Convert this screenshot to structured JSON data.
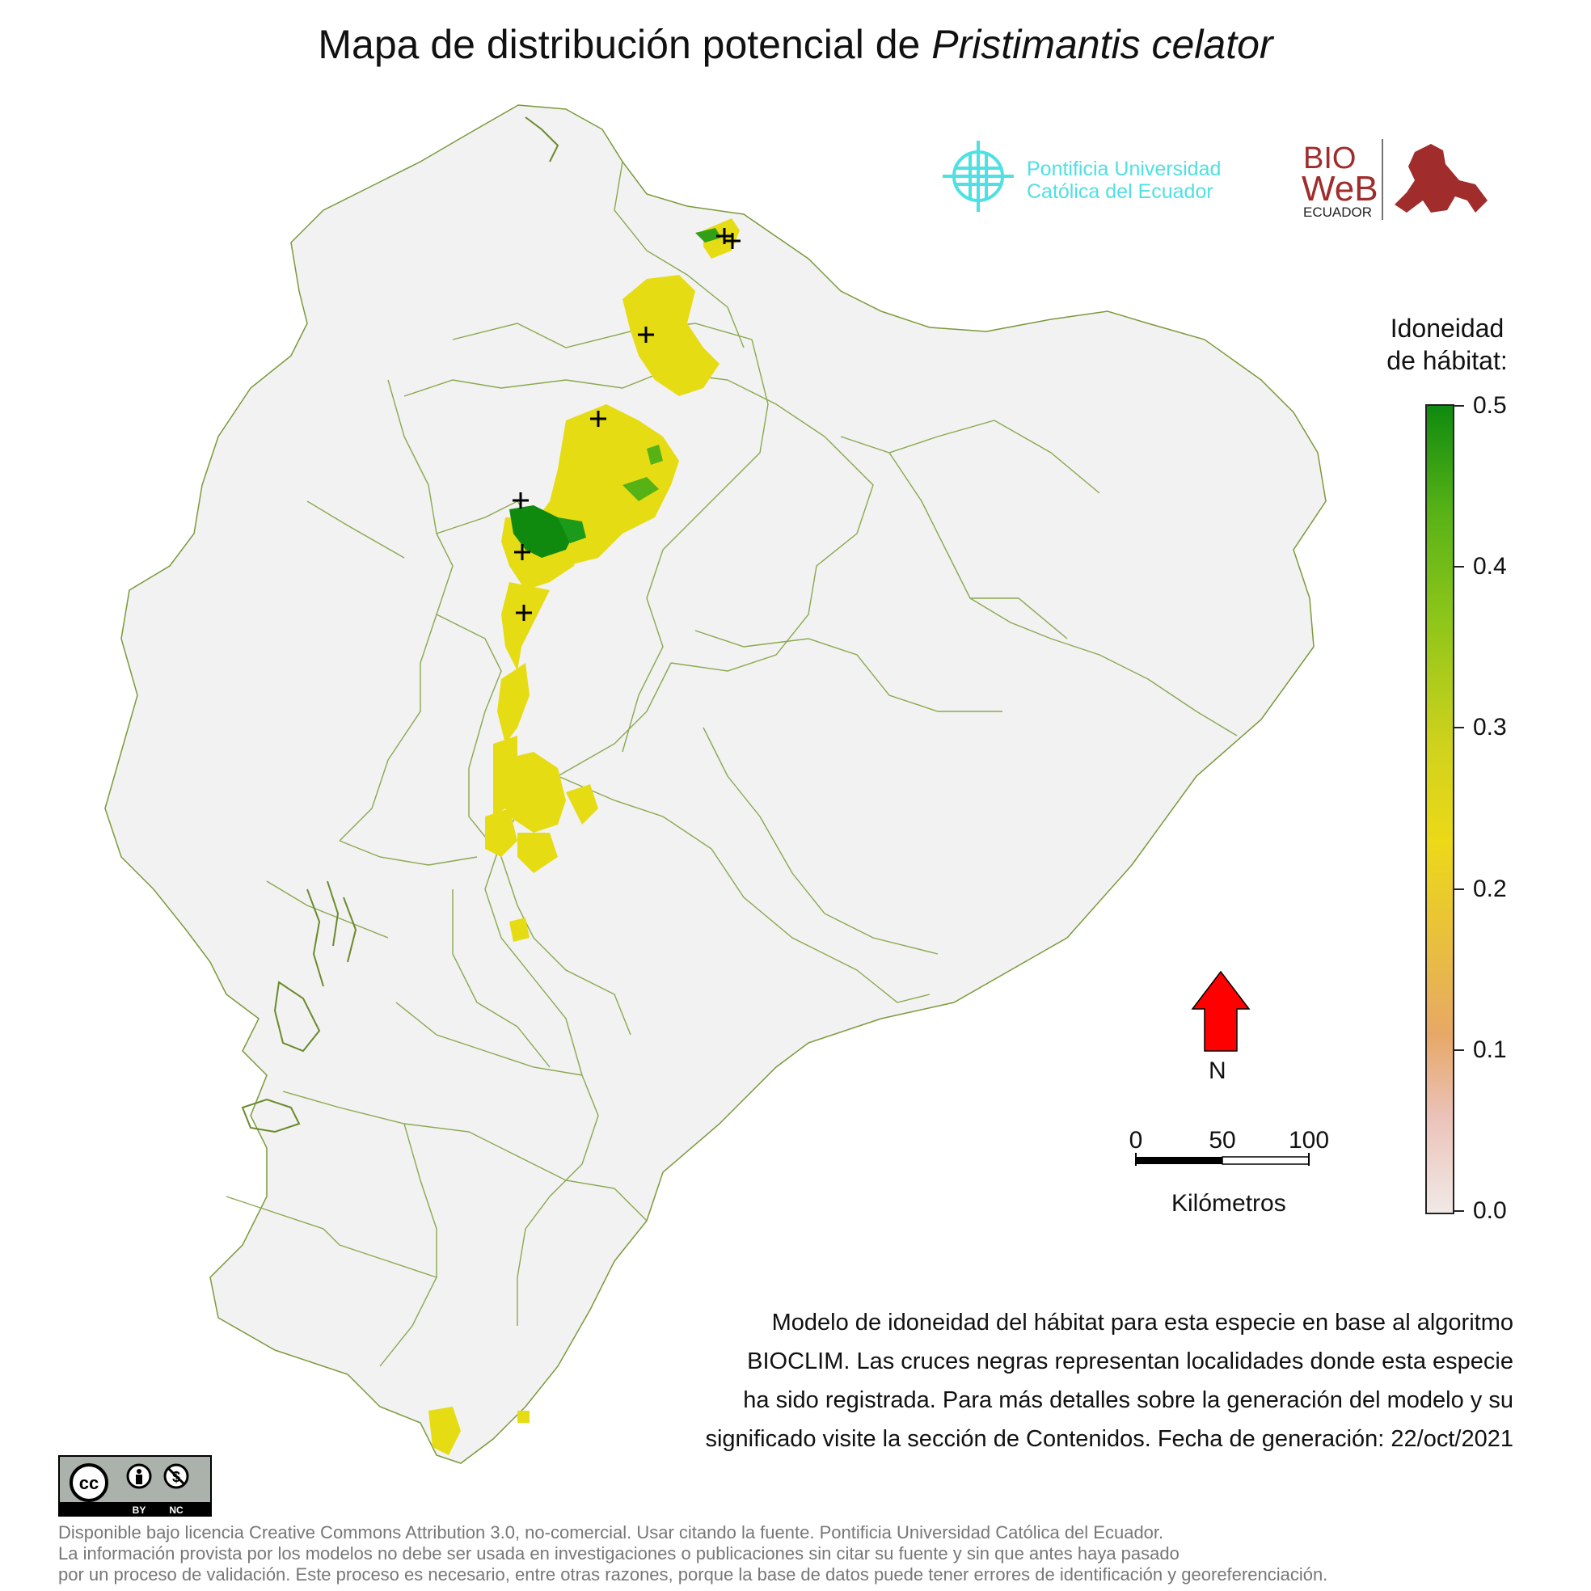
{
  "title": {
    "prefix": "Mapa de distribución potencial de ",
    "species": "Pristimantis celator"
  },
  "logos": {
    "university_line1": "Pontificia Universidad",
    "university_line2": "Católica del Ecuador",
    "bioweb_top": "BIO",
    "bioweb_mid": "WeB",
    "bioweb_bottom": "ECUADOR",
    "cc_by": "BY",
    "cc_nc": "NC"
  },
  "legend": {
    "title_line1": "Idoneidad",
    "title_line2": "de hábitat:",
    "ticks": [
      "0.5",
      "0.4",
      "0.3",
      "0.2",
      "0.1",
      "0.0"
    ],
    "max": 0.5,
    "min": 0.0
  },
  "north_arrow": {
    "label": "N",
    "color": "#ff0000"
  },
  "scale_bar": {
    "labels": [
      "0",
      "50",
      "100"
    ],
    "unit": "Kilómetros"
  },
  "description": [
    "Modelo de idoneidad del hábitat para esta especie en base al algoritmo",
    "BIOCLIM. Las cruces negras representan localidades donde esta especie",
    "ha sido registrada. Para más detalles sobre la generación del modelo y su",
    "significado visite la sección de Contenidos. Fecha de generación: 22/oct/2021"
  ],
  "footer": [
    "Disponible bajo licencia Creative Commons Attribution 3.0, no-comercial. Usar citando la fuente. Pontificia Universidad Católica del Ecuador.",
    "La información provista por los modelos no debe ser usada en investigaciones o publicaciones sin citar su fuente y sin que antes haya pasado",
    "por un proceso de validación. Este proceso es necesario, entre otras razones, porque la base de datos puede tener errores de identificación y georeferenciación."
  ],
  "colors": {
    "land": "#f2f2f2",
    "border": "#7a9a3a",
    "high": "#0f8a0f",
    "mid": "#e6dc14",
    "low": "#f1e9e6",
    "record_marker": "#000000"
  }
}
